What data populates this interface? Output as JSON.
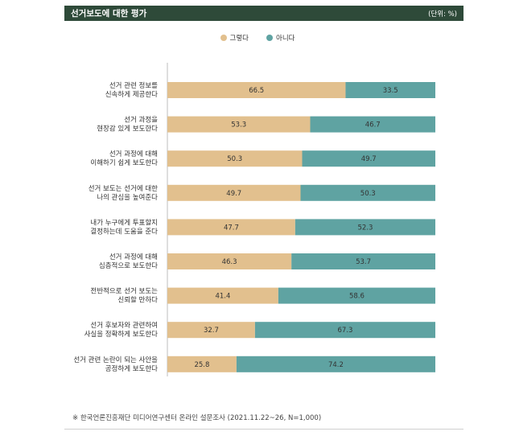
{
  "header": {
    "title": "선거보도에 대한 평가",
    "unit": "(단위: %)"
  },
  "legend": [
    {
      "label": "그렇다",
      "color": "#e2c08e"
    },
    {
      "label": "아니다",
      "color": "#5fa3a2"
    }
  ],
  "source": "※ 한국언론진흥재단 미디어연구센터 온라인 설문조사 (2021.11.22~26, N=1,000)",
  "chart_data": {
    "type": "bar",
    "orientation": "horizontal",
    "stacked": true,
    "xlim": [
      0,
      100
    ],
    "categories": [
      [
        "선거 관련 정보를",
        "신속하게 제공한다"
      ],
      [
        "선거 과정을",
        "현장감 있게 보도한다"
      ],
      [
        "선거 과정에 대해",
        "이해하기 쉽게 보도한다"
      ],
      [
        "선거 보도는 선거에 대한",
        "나의 관심을 높여준다"
      ],
      [
        "내가 누구에게 투표할지",
        "결정하는데 도움을 준다"
      ],
      [
        "선거 과정에 대해",
        "심층적으로 보도한다"
      ],
      [
        "전반적으로 선거 보도는",
        "신뢰할 만하다"
      ],
      [
        "선거 후보자와 관련하여",
        "사실을 정확하게 보도한다"
      ],
      [
        "선거 관련 논란이 되는 사안을",
        "공정하게 보도한다"
      ]
    ],
    "series": [
      {
        "name": "그렇다",
        "color": "#e2c08e",
        "values": [
          66.5,
          53.3,
          50.3,
          49.7,
          47.7,
          46.3,
          41.4,
          32.7,
          25.8
        ]
      },
      {
        "name": "아니다",
        "color": "#5fa3a2",
        "values": [
          33.5,
          46.7,
          49.7,
          50.3,
          52.3,
          53.7,
          58.6,
          67.3,
          74.2
        ]
      }
    ]
  }
}
